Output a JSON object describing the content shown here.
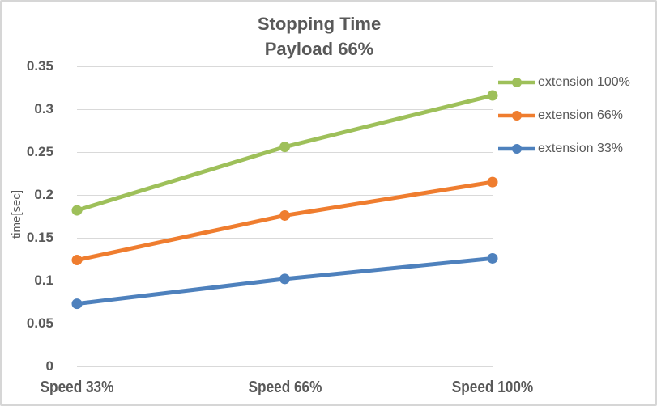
{
  "chart_data": {
    "type": "line",
    "title": "Stopping Time",
    "subtitle": "Payload 66%",
    "ylabel": "time[sec]",
    "xlabel": "",
    "categories": [
      "Speed 33%",
      "Speed 66%",
      "Speed 100%"
    ],
    "series": [
      {
        "name": "extension 100%",
        "color": "#9EC05A",
        "values": [
          0.182,
          0.256,
          0.316
        ]
      },
      {
        "name": "extension 66%",
        "color": "#EF7D2F",
        "values": [
          0.124,
          0.176,
          0.215
        ]
      },
      {
        "name": "extension 33%",
        "color": "#4E81BD",
        "values": [
          0.073,
          0.102,
          0.126
        ]
      }
    ],
    "ylim": [
      0,
      0.35
    ],
    "ytick_step": 0.05,
    "ytick_labels": [
      "0",
      "0.05",
      "0.1",
      "0.15",
      "0.2",
      "0.25",
      "0.3",
      "0.35"
    ],
    "grid": true,
    "legend_position": "right",
    "text_color": "#595959",
    "grid_color": "#D9D9D9",
    "background_color": "#FFFFFF",
    "border_color": "#D6D6D6"
  }
}
